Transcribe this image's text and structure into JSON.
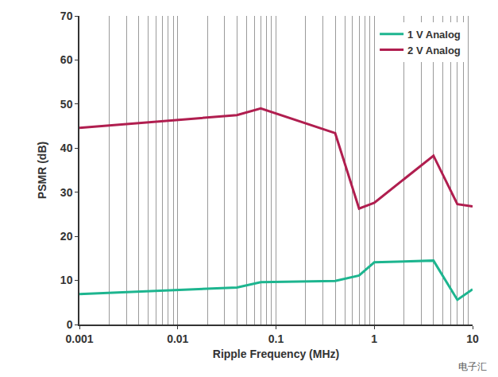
{
  "chart_data": {
    "type": "line",
    "x_label": "Ripple Frequency (MHz)",
    "y_label": "PSMR (dB)",
    "x": [
      0.001,
      0.04,
      0.07,
      0.4,
      0.7,
      1,
      4,
      7,
      10
    ],
    "series": [
      {
        "name": "1 V Analog",
        "color": "#1db58f",
        "values": [
          6.9,
          8.4,
          9.6,
          9.9,
          11.1,
          14.1,
          14.5,
          5.6,
          8.0
        ]
      },
      {
        "name": "2 V Analog",
        "color": "#b01e4f",
        "values": [
          44.6,
          47.5,
          49.0,
          43.4,
          26.3,
          27.6,
          38.3,
          27.3,
          26.8
        ]
      }
    ],
    "log": "x",
    "xlim": [
      0.001,
      10
    ],
    "xticks": [
      0.001,
      0.01,
      0.1,
      1,
      10
    ],
    "ylim": [
      0,
      70
    ],
    "yticks": [
      0,
      10,
      20,
      30,
      40,
      50,
      60,
      70
    ],
    "grid": "x",
    "legend": "top-right",
    "annotations": [
      "电子汇"
    ]
  }
}
